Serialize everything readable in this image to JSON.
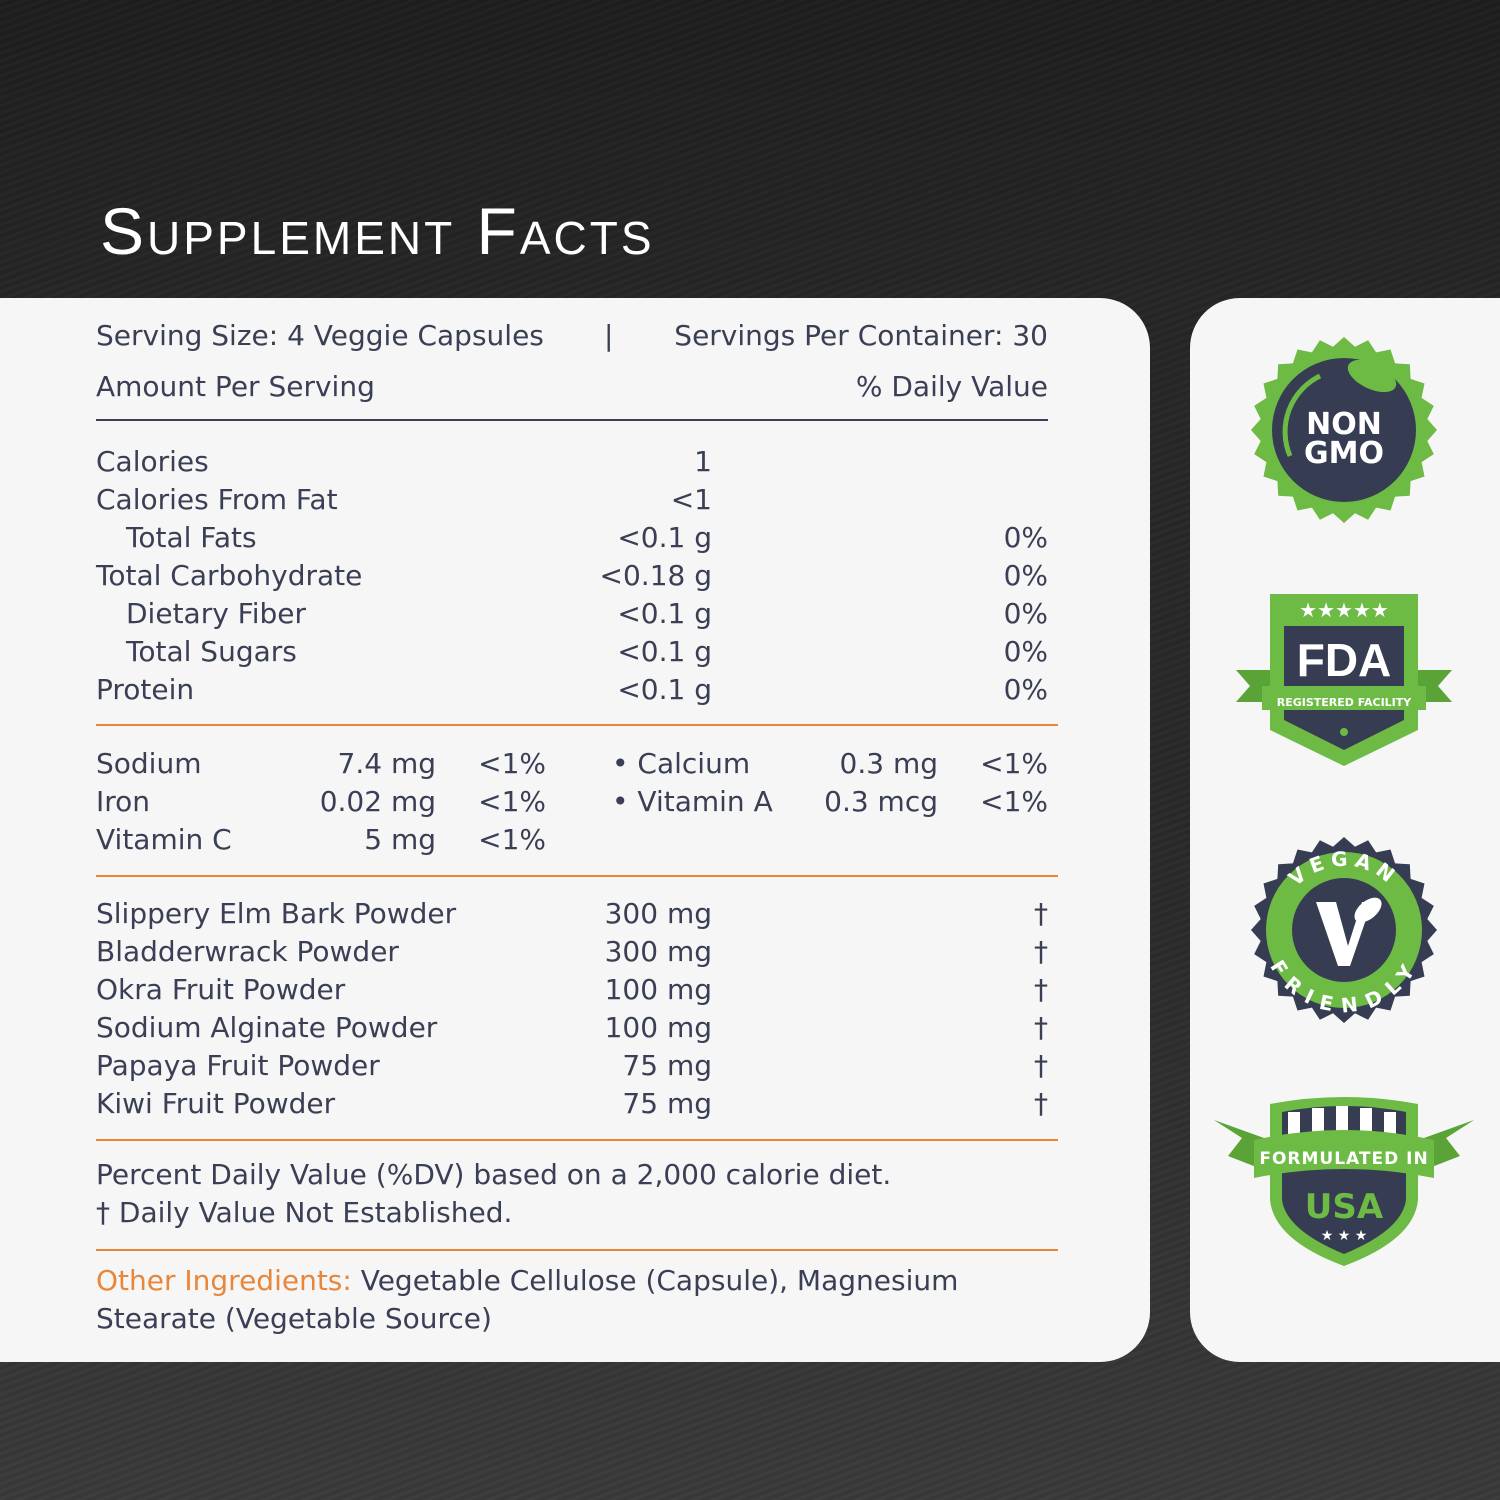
{
  "title": "Supplement Facts",
  "header": {
    "serving_size": "Serving Size: 4 Veggie Capsules",
    "separator": "|",
    "servings_per_container": "Servings Per Container: 30",
    "amount_per_serving": "Amount Per Serving",
    "daily_value": "% Daily Value"
  },
  "macros": [
    {
      "name": "Calories",
      "amount": "1",
      "dv": "",
      "indent": false
    },
    {
      "name": "Calories From Fat",
      "amount": "<1",
      "dv": "",
      "indent": false
    },
    {
      "name": "Total Fats",
      "amount": "<0.1 g",
      "dv": "0%",
      "indent": true
    },
    {
      "name": "Total Carbohydrate",
      "amount": "<0.18 g",
      "dv": "0%",
      "indent": false
    },
    {
      "name": "Dietary Fiber",
      "amount": "<0.1 g",
      "dv": "0%",
      "indent": true
    },
    {
      "name": "Total Sugars",
      "amount": "<0.1 g",
      "dv": "0%",
      "indent": true
    },
    {
      "name": "Protein",
      "amount": "<0.1 g",
      "dv": "0%",
      "indent": false
    }
  ],
  "minerals_left": [
    {
      "name": "Sodium",
      "amount": "7.4 mg",
      "dv": "<1%"
    },
    {
      "name": "Iron",
      "amount": "0.02 mg",
      "dv": "<1%"
    },
    {
      "name": "Vitamin C",
      "amount": "5 mg",
      "dv": "<1%"
    }
  ],
  "minerals_right": [
    {
      "name": "• Calcium",
      "amount": "0.3 mg",
      "dv": "<1%"
    },
    {
      "name": "• Vitamin A",
      "amount": "0.3 mcg",
      "dv": "<1%"
    }
  ],
  "ingredients": [
    {
      "name": "Slippery Elm Bark Powder",
      "amount": "300 mg",
      "dv": "†"
    },
    {
      "name": "Bladderwrack Powder",
      "amount": "300 mg",
      "dv": "†"
    },
    {
      "name": "Okra Fruit Powder",
      "amount": "100 mg",
      "dv": "†"
    },
    {
      "name": "Sodium Alginate Powder",
      "amount": "100 mg",
      "dv": "†"
    },
    {
      "name": "Papaya Fruit Powder",
      "amount": "75 mg",
      "dv": "†"
    },
    {
      "name": "Kiwi Fruit Powder",
      "amount": "75 mg",
      "dv": "†"
    }
  ],
  "footnotes": [
    "Percent Daily Value (%DV) based on a 2,000 calorie diet.",
    "† Daily Value Not Established."
  ],
  "other_ingredients": {
    "label": "Other Ingredients:",
    "line1": " Vegetable Cellulose (Capsule), Magnesium",
    "line2": "Stearate (Vegetable Source)"
  },
  "badges": {
    "non_gmo": [
      "NON",
      "GMO"
    ],
    "fda": {
      "main": "FDA",
      "sub": "REGISTERED FACILITY"
    },
    "vegan": {
      "top": "VEGAN",
      "bottom": "FRIENDLY"
    },
    "usa": {
      "top": "FORMULATED IN",
      "main": "USA"
    }
  },
  "colors": {
    "green": "#6dbb45",
    "navy": "#363c52",
    "orange": "#e8873a",
    "text": "#3a3f55"
  }
}
